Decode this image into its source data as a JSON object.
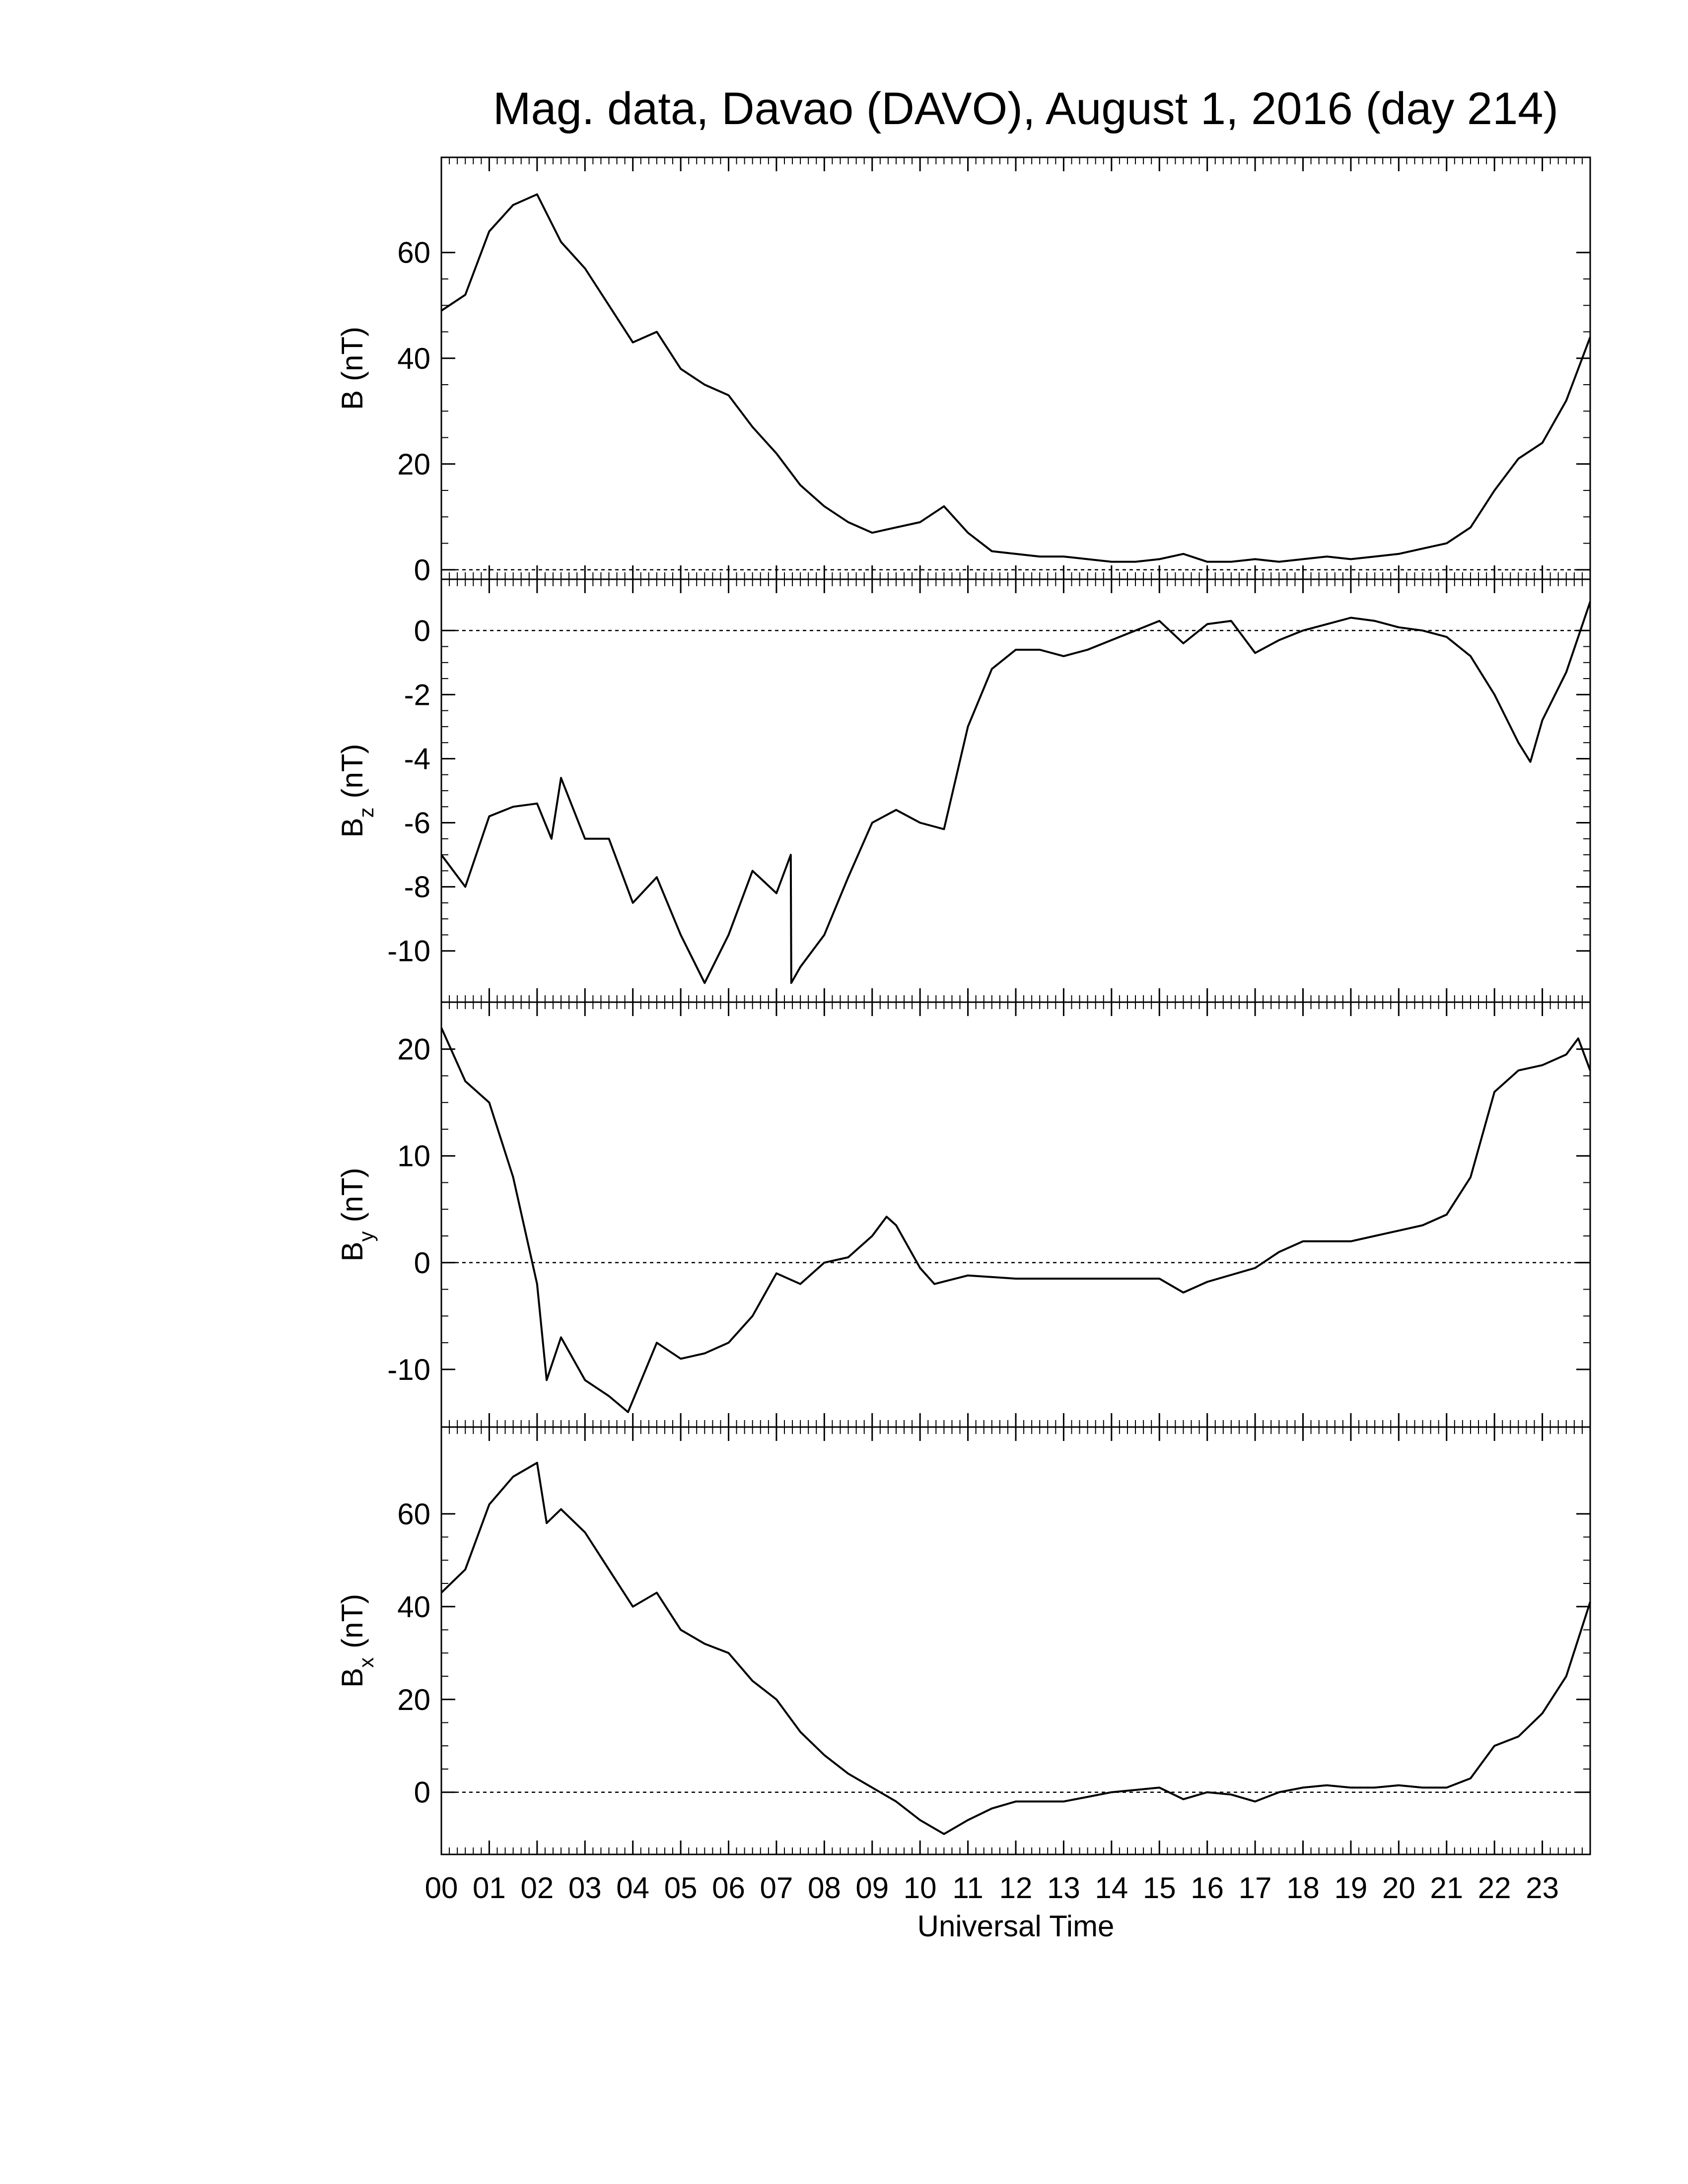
{
  "chart_data": [
    {
      "type": "line",
      "title": "Mag. data, Davao (DAVO), August 1, 2016 (day 214)",
      "ylabel": {
        "main": "B",
        "unit": "(nT)"
      },
      "x": [
        0,
        0.5,
        1,
        1.5,
        2,
        2.5,
        3,
        3.5,
        4,
        4.5,
        5,
        5.5,
        6,
        6.5,
        7,
        7.5,
        8,
        8.5,
        9,
        9.5,
        10,
        10.5,
        11,
        11.5,
        12,
        12.5,
        13,
        13.5,
        14,
        14.5,
        15,
        15.5,
        16,
        16.5,
        17,
        17.5,
        18,
        18.5,
        19,
        19.5,
        20,
        20.5,
        21,
        21.5,
        22,
        22.5,
        23,
        23.5,
        24
      ],
      "values": [
        49,
        52,
        64,
        69,
        71,
        62,
        57,
        50,
        43,
        45,
        38,
        35,
        33,
        27,
        22,
        16,
        12,
        9,
        7,
        8,
        9,
        12,
        7,
        3.5,
        3,
        2.5,
        2.5,
        2,
        1.5,
        1.5,
        2,
        3,
        1.5,
        1.5,
        2,
        1.5,
        2,
        2.5,
        2,
        2.5,
        3,
        4,
        5,
        8,
        15,
        21,
        24,
        32,
        44
      ],
      "color": "#000000",
      "xlim": [
        0,
        24
      ],
      "xticks": [
        0,
        1,
        2,
        3,
        4,
        5,
        6,
        7,
        8,
        9,
        10,
        11,
        12,
        13,
        14,
        15,
        16,
        17,
        18,
        19,
        20,
        21,
        22,
        23
      ],
      "ylim": [
        -1.8,
        78
      ],
      "yticks": [
        0,
        20,
        40,
        60
      ],
      "reference_line": 0
    },
    {
      "type": "line",
      "ylabel": {
        "main": "B",
        "sub": "z",
        "unit": "(nT)"
      },
      "x": [
        0,
        0.5,
        1,
        1.5,
        2,
        2.3,
        2.5,
        3,
        3.5,
        4,
        4.5,
        5,
        5.5,
        6,
        6.5,
        7,
        7.3,
        7.31,
        7.5,
        8,
        8.5,
        9,
        9.5,
        10,
        10.5,
        11,
        11.5,
        12,
        12.5,
        13,
        13.5,
        14,
        14.5,
        15,
        15.5,
        16,
        16.5,
        17,
        17.5,
        18,
        18.5,
        19,
        19.5,
        20,
        20.5,
        21,
        21.5,
        22,
        22.5,
        22.75,
        23,
        23.5,
        24
      ],
      "values": [
        -7,
        -8,
        -5.8,
        -5.5,
        -5.4,
        -6.5,
        -4.6,
        -6.5,
        -6.5,
        -8.5,
        -7.7,
        -9.5,
        -11,
        -9.5,
        -7.5,
        -8.2,
        -7,
        -11,
        -10.5,
        -9.5,
        -7.7,
        -6,
        -5.6,
        -6,
        -6.2,
        -3,
        -1.2,
        -0.6,
        -0.6,
        -0.8,
        -0.6,
        -0.3,
        0,
        0.3,
        -0.4,
        0.2,
        0.3,
        -0.7,
        -0.3,
        0,
        0.2,
        0.4,
        0.3,
        0.1,
        0,
        -0.2,
        -0.8,
        -2,
        -3.5,
        -4.1,
        -2.8,
        -1.3,
        0.9
      ],
      "color": "#000000",
      "xlim": [
        0,
        24
      ],
      "xticks": [
        0,
        1,
        2,
        3,
        4,
        5,
        6,
        7,
        8,
        9,
        10,
        11,
        12,
        13,
        14,
        15,
        16,
        17,
        18,
        19,
        20,
        21,
        22,
        23
      ],
      "ylim": [
        -11.6,
        1.6
      ],
      "yticks": [
        -10,
        -8,
        -6,
        -4,
        -2,
        0
      ],
      "reference_line": 0
    },
    {
      "type": "line",
      "ylabel": {
        "main": "B",
        "sub": "y",
        "unit": "(nT)"
      },
      "x": [
        0,
        0.5,
        1,
        1.5,
        2,
        2.2,
        2.5,
        3,
        3.5,
        3.9,
        4.5,
        5,
        5.5,
        6,
        6.5,
        7,
        7.5,
        8,
        8.5,
        9,
        9.3,
        9.5,
        10,
        10.3,
        11,
        12,
        13,
        14,
        15,
        15.5,
        16,
        17,
        17.5,
        18,
        18.5,
        19,
        19.5,
        20,
        20.5,
        21,
        21.5,
        22,
        22.5,
        23,
        23.5,
        23.75,
        24
      ],
      "values": [
        22,
        17,
        15,
        8,
        -2,
        -11,
        -7,
        -11,
        -12.5,
        -14,
        -7.5,
        -9,
        -8.5,
        -7.5,
        -5,
        -1,
        -2,
        0,
        0.5,
        2.5,
        4.3,
        3.5,
        -0.5,
        -2,
        -1.2,
        -1.5,
        -1.5,
        -1.5,
        -1.5,
        -2.8,
        -1.8,
        -0.5,
        1,
        2,
        2,
        2,
        2.5,
        3,
        3.5,
        4.5,
        8,
        16,
        18,
        18.5,
        19.5,
        21,
        18
      ],
      "color": "#000000",
      "xlim": [
        0,
        24
      ],
      "xticks": [
        0,
        1,
        2,
        3,
        4,
        5,
        6,
        7,
        8,
        9,
        10,
        11,
        12,
        13,
        14,
        15,
        16,
        17,
        18,
        19,
        20,
        21,
        22,
        23
      ],
      "ylim": [
        -15.4,
        24.4
      ],
      "yticks": [
        -10,
        0,
        10,
        20
      ],
      "reference_line": 0
    },
    {
      "type": "line",
      "ylabel": {
        "main": "B",
        "sub": "x",
        "unit": "(nT)"
      },
      "xlabel": "Universal Time",
      "x": [
        0,
        0.5,
        1,
        1.5,
        2,
        2.2,
        2.5,
        3,
        3.5,
        4,
        4.5,
        5,
        5.5,
        6,
        6.5,
        7,
        7.5,
        8,
        8.5,
        9,
        9.5,
        10,
        10.5,
        11,
        11.5,
        12,
        12.5,
        13,
        13.5,
        14,
        14.5,
        15,
        15.5,
        16,
        16.5,
        17,
        17.5,
        18,
        18.5,
        19,
        19.5,
        20,
        20.5,
        21,
        21.5,
        22,
        22.5,
        23,
        23.5,
        24
      ],
      "values": [
        43,
        48,
        62,
        68,
        71,
        58,
        61,
        56,
        48,
        40,
        43,
        35,
        32,
        30,
        24,
        20,
        13,
        8,
        4,
        1,
        -2,
        -6,
        -9,
        -6,
        -3.5,
        -2,
        -2,
        -2,
        -1,
        0,
        0.5,
        1,
        -1.5,
        0,
        -0.5,
        -2,
        0,
        1,
        1.5,
        1,
        1,
        1.5,
        1,
        1,
        3,
        10,
        12,
        17,
        25,
        41
      ],
      "color": "#000000",
      "xlim": [
        0,
        24
      ],
      "xticks": [
        {
          "value": 0,
          "label": "00"
        },
        {
          "value": 1,
          "label": "01"
        },
        {
          "value": 2,
          "label": "02"
        },
        {
          "value": 3,
          "label": "03"
        },
        {
          "value": 4,
          "label": "04"
        },
        {
          "value": 5,
          "label": "05"
        },
        {
          "value": 6,
          "label": "06"
        },
        {
          "value": 7,
          "label": "07"
        },
        {
          "value": 8,
          "label": "08"
        },
        {
          "value": 9,
          "label": "09"
        },
        {
          "value": 10,
          "label": "10"
        },
        {
          "value": 11,
          "label": "11"
        },
        {
          "value": 12,
          "label": "12"
        },
        {
          "value": 13,
          "label": "13"
        },
        {
          "value": 14,
          "label": "14"
        },
        {
          "value": 15,
          "label": "15"
        },
        {
          "value": 16,
          "label": "16"
        },
        {
          "value": 17,
          "label": "17"
        },
        {
          "value": 18,
          "label": "18"
        },
        {
          "value": 19,
          "label": "19"
        },
        {
          "value": 20,
          "label": "20"
        },
        {
          "value": 21,
          "label": "21"
        },
        {
          "value": 22,
          "label": "22"
        },
        {
          "value": 23,
          "label": "23"
        }
      ],
      "ylim": [
        -13.4,
        78.7
      ],
      "yticks": [
        0,
        20,
        40,
        60
      ],
      "reference_line": 0
    }
  ]
}
